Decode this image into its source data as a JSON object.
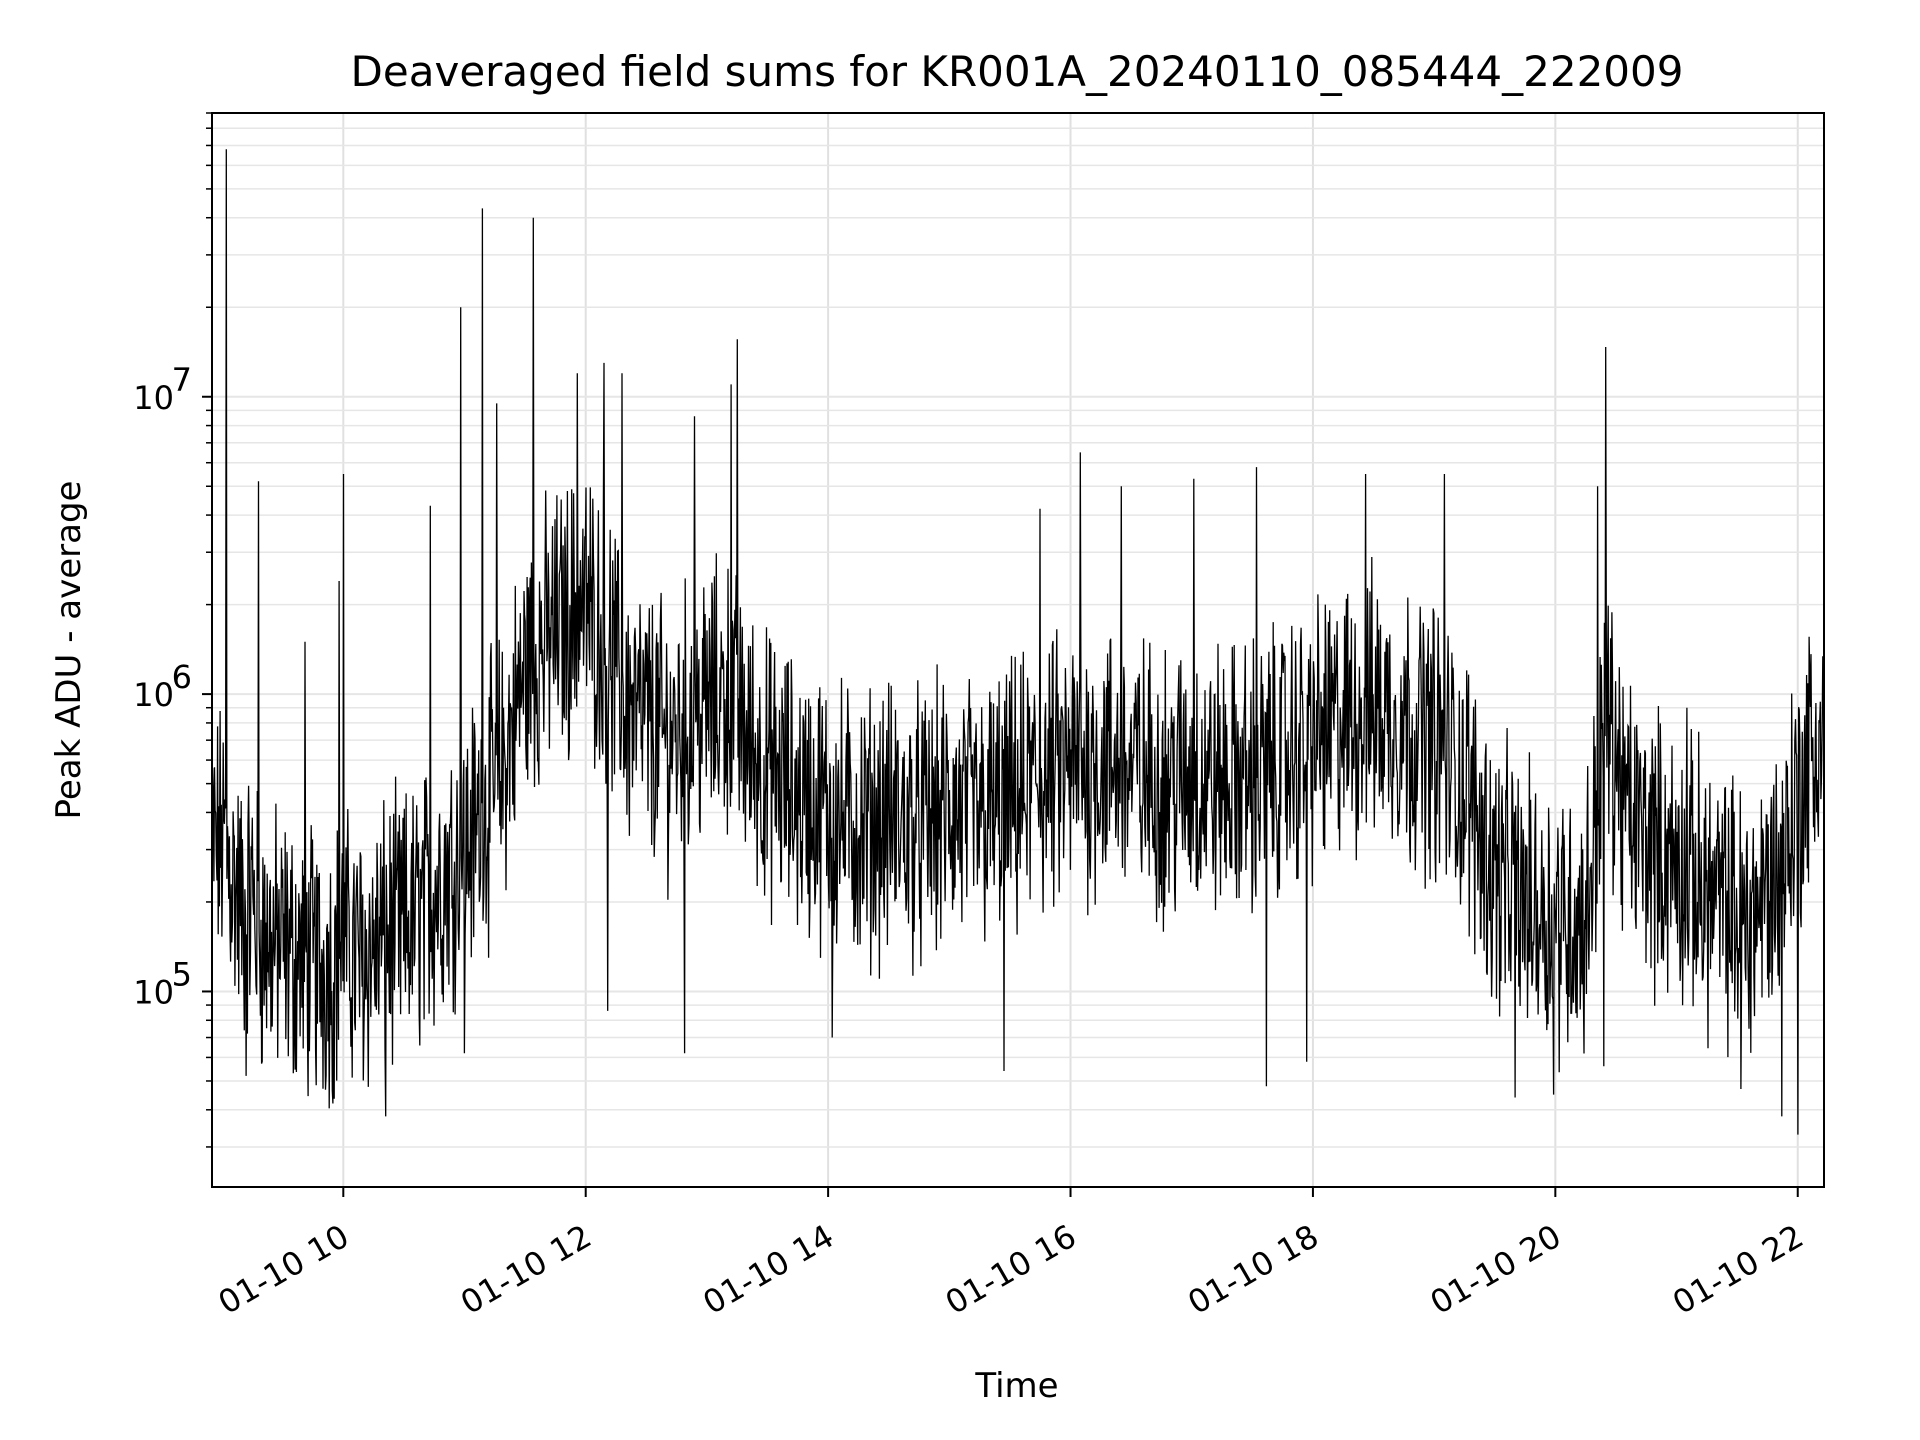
{
  "chart_data": {
    "type": "line",
    "title": "Deaveraged field sums for KR001A_20240110_085444_222009",
    "xlabel": "Time",
    "ylabel": "Peak ADU - average",
    "xlim": [
      "2024-01-10 08:55",
      "2024-01-10 22:13"
    ],
    "ylim": [
      22000,
      90000000
    ],
    "yscale": "log",
    "grid": true,
    "x_ticks": [
      {
        "value": "2024-01-10 10:00",
        "label": "01-10 10"
      },
      {
        "value": "2024-01-10 12:00",
        "label": "01-10 12"
      },
      {
        "value": "2024-01-10 14:00",
        "label": "01-10 14"
      },
      {
        "value": "2024-01-10 16:00",
        "label": "01-10 16"
      },
      {
        "value": "2024-01-10 18:00",
        "label": "01-10 18"
      },
      {
        "value": "2024-01-10 20:00",
        "label": "01-10 20"
      },
      {
        "value": "2024-01-10 22:00",
        "label": "01-10 22"
      }
    ],
    "y_ticks": [
      {
        "value": 100000,
        "base": "10",
        "exp": "5"
      },
      {
        "value": 1000000,
        "base": "10",
        "exp": "6"
      },
      {
        "value": 10000000,
        "base": "10",
        "exp": "7"
      }
    ],
    "series": [
      {
        "color": "#000000",
        "points": [
          [
            "2024-01-10 08:55",
            300000
          ],
          [
            "2024-01-10 09:00",
            320000
          ],
          [
            "2024-01-10 09:05",
            250000
          ],
          [
            "2024-01-10 09:10",
            180000
          ],
          [
            "2024-01-10 09:15",
            210000
          ],
          [
            "2024-01-10 09:20",
            150000
          ],
          [
            "2024-01-10 09:30",
            140000
          ],
          [
            "2024-01-10 09:40",
            130000
          ],
          [
            "2024-01-10 09:50",
            120000
          ],
          [
            "2024-01-10 10:00",
            140000
          ],
          [
            "2024-01-10 10:10",
            130000
          ],
          [
            "2024-01-10 10:20",
            150000
          ],
          [
            "2024-01-10 10:30",
            160000
          ],
          [
            "2024-01-10 10:40",
            190000
          ],
          [
            "2024-01-10 10:50",
            250000
          ],
          [
            "2024-01-10 11:00",
            300000
          ],
          [
            "2024-01-10 11:10",
            400000
          ],
          [
            "2024-01-10 11:20",
            600000
          ],
          [
            "2024-01-10 11:30",
            1200000
          ],
          [
            "2024-01-10 11:40",
            1500000
          ],
          [
            "2024-01-10 11:50",
            1800000
          ],
          [
            "2024-01-10 12:00",
            2000000
          ],
          [
            "2024-01-10 12:10",
            1500000
          ],
          [
            "2024-01-10 12:20",
            900000
          ],
          [
            "2024-01-10 12:30",
            800000
          ],
          [
            "2024-01-10 12:40",
            700000
          ],
          [
            "2024-01-10 12:50",
            800000
          ],
          [
            "2024-01-10 13:00",
            900000
          ],
          [
            "2024-01-10 13:10",
            1000000
          ],
          [
            "2024-01-10 13:20",
            700000
          ],
          [
            "2024-01-10 13:30",
            550000
          ],
          [
            "2024-01-10 13:45",
            450000
          ],
          [
            "2024-01-10 14:00",
            400000
          ],
          [
            "2024-01-10 14:15",
            350000
          ],
          [
            "2024-01-10 14:30",
            380000
          ],
          [
            "2024-01-10 14:45",
            350000
          ],
          [
            "2024-01-10 15:00",
            400000
          ],
          [
            "2024-01-10 15:15",
            380000
          ],
          [
            "2024-01-10 15:30",
            420000
          ],
          [
            "2024-01-10 15:45",
            500000
          ],
          [
            "2024-01-10 16:00",
            550000
          ],
          [
            "2024-01-10 16:15",
            600000
          ],
          [
            "2024-01-10 16:30",
            550000
          ],
          [
            "2024-01-10 16:45",
            500000
          ],
          [
            "2024-01-10 17:00",
            520000
          ],
          [
            "2024-01-10 17:15",
            500000
          ],
          [
            "2024-01-10 17:30",
            520000
          ],
          [
            "2024-01-10 17:45",
            600000
          ],
          [
            "2024-01-10 18:00",
            700000
          ],
          [
            "2024-01-10 18:15",
            800000
          ],
          [
            "2024-01-10 18:30",
            900000
          ],
          [
            "2024-01-10 18:45",
            800000
          ],
          [
            "2024-01-10 19:00",
            700000
          ],
          [
            "2024-01-10 19:15",
            500000
          ],
          [
            "2024-01-10 19:30",
            250000
          ],
          [
            "2024-01-10 19:45",
            200000
          ],
          [
            "2024-01-10 20:00",
            180000
          ],
          [
            "2024-01-10 20:15",
            170000
          ],
          [
            "2024-01-10 20:25",
            900000
          ],
          [
            "2024-01-10 20:35",
            400000
          ],
          [
            "2024-01-10 20:50",
            300000
          ],
          [
            "2024-01-10 21:05",
            250000
          ],
          [
            "2024-01-10 21:20",
            200000
          ],
          [
            "2024-01-10 21:35",
            170000
          ],
          [
            "2024-01-10 21:50",
            250000
          ],
          [
            "2024-01-10 22:05",
            600000
          ],
          [
            "2024-01-10 22:13",
            700000
          ]
        ],
        "spikes": [
          [
            "2024-01-10 09:02",
            68000000
          ],
          [
            "2024-01-10 09:18",
            5200000
          ],
          [
            "2024-01-10 09:41",
            1500000
          ],
          [
            "2024-01-10 09:58",
            2400000
          ],
          [
            "2024-01-10 10:00",
            5500000
          ],
          [
            "2024-01-10 10:43",
            4300000
          ],
          [
            "2024-01-10 10:58",
            20000000
          ],
          [
            "2024-01-10 11:09",
            43000000
          ],
          [
            "2024-01-10 11:34",
            40000000
          ],
          [
            "2024-01-10 11:16",
            9500000
          ],
          [
            "2024-01-10 11:56",
            12000000
          ],
          [
            "2024-01-10 12:09",
            13000000
          ],
          [
            "2024-01-10 12:18",
            12000000
          ],
          [
            "2024-01-10 12:54",
            8600000
          ],
          [
            "2024-01-10 13:12",
            11000000
          ],
          [
            "2024-01-10 13:15",
            15600000
          ],
          [
            "2024-01-10 15:45",
            4200000
          ],
          [
            "2024-01-10 16:05",
            6500000
          ],
          [
            "2024-01-10 16:25",
            5000000
          ],
          [
            "2024-01-10 17:01",
            5300000
          ],
          [
            "2024-01-10 17:32",
            5800000
          ],
          [
            "2024-01-10 18:26",
            5500000
          ],
          [
            "2024-01-10 19:05",
            5500000
          ],
          [
            "2024-01-10 20:21",
            5000000
          ],
          [
            "2024-01-10 20:25",
            14700000
          ],
          [
            "2024-01-10 21:05",
            900000
          ]
        ],
        "dips": [
          [
            "2024-01-10 09:12",
            52000
          ],
          [
            "2024-01-10 09:55",
            42000
          ],
          [
            "2024-01-10 10:21",
            38000
          ],
          [
            "2024-01-10 11:00",
            62000
          ],
          [
            "2024-01-10 12:11",
            86000
          ],
          [
            "2024-01-10 12:49",
            62000
          ],
          [
            "2024-01-10 14:02",
            70000
          ],
          [
            "2024-01-10 15:27",
            54000
          ],
          [
            "2024-01-10 17:37",
            48000
          ],
          [
            "2024-01-10 17:57",
            58000
          ],
          [
            "2024-01-10 19:40",
            44000
          ],
          [
            "2024-01-10 19:59",
            45000
          ],
          [
            "2024-01-10 20:24",
            56000
          ],
          [
            "2024-01-10 21:32",
            47000
          ],
          [
            "2024-01-10 21:52",
            38000
          ],
          [
            "2024-01-10 22:00",
            33000
          ]
        ]
      }
    ]
  }
}
